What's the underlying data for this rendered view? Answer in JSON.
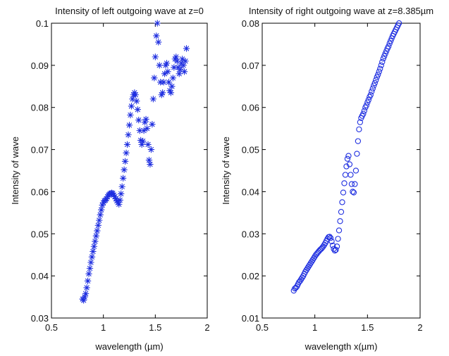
{
  "chart_data": [
    {
      "type": "scatter",
      "title": "Intensity of left outgoing wave at z=0",
      "xlabel": "wavelength (µm)",
      "ylabel": "Intensity of wave",
      "xlim": [
        0.5,
        2
      ],
      "ylim": [
        0.03,
        0.1
      ],
      "xticks": [
        0.5,
        1,
        1.5,
        2
      ],
      "yticks": [
        0.03,
        0.04,
        0.05,
        0.06,
        0.07,
        0.08,
        0.09,
        0.1
      ],
      "xtick_labels": [
        "0.5",
        "1",
        "1.5",
        "2"
      ],
      "ytick_labels": [
        "0.03",
        "0.04",
        "0.05",
        "0.06",
        "0.07",
        "0.08",
        "0.09",
        "0.1"
      ],
      "marker": "star",
      "color": "#1f2fe0",
      "grid": false,
      "series": [
        {
          "x": [
            0.8,
            0.81,
            0.82,
            0.83,
            0.84,
            0.85,
            0.86,
            0.87,
            0.88,
            0.89,
            0.9,
            0.91,
            0.92,
            0.93,
            0.94,
            0.95,
            0.96,
            0.97,
            0.98,
            0.99,
            1.0,
            1.01,
            1.02,
            1.03,
            1.04,
            1.05,
            1.06,
            1.07,
            1.08,
            1.09,
            1.1,
            1.11,
            1.12,
            1.13,
            1.14,
            1.15,
            1.16,
            1.17,
            1.18,
            1.19,
            1.2,
            1.21,
            1.22,
            1.23,
            1.24,
            1.25,
            1.26,
            1.27,
            1.28,
            1.29,
            1.3,
            1.31,
            1.32,
            1.33,
            1.34,
            1.35,
            1.36,
            1.37,
            1.38,
            1.39,
            1.4,
            1.41,
            1.42,
            1.43,
            1.44,
            1.45,
            1.46,
            1.47,
            1.48,
            1.49,
            1.5,
            1.51,
            1.52,
            1.53,
            1.54,
            1.55,
            1.56,
            1.57,
            1.58,
            1.59,
            1.6,
            1.61,
            1.62,
            1.63,
            1.64,
            1.65,
            1.66,
            1.67,
            1.68,
            1.69,
            1.7,
            1.71,
            1.72,
            1.73,
            1.74,
            1.75,
            1.76,
            1.77,
            1.78,
            1.79,
            1.8
          ],
          "y": [
            0.0345,
            0.0342,
            0.035,
            0.0358,
            0.0372,
            0.0388,
            0.0405,
            0.0418,
            0.0432,
            0.0445,
            0.0458,
            0.047,
            0.0482,
            0.0495,
            0.0507,
            0.052,
            0.0532,
            0.0545,
            0.0557,
            0.0568,
            0.0574,
            0.0578,
            0.058,
            0.0583,
            0.0588,
            0.0592,
            0.0594,
            0.0596,
            0.0597,
            0.0596,
            0.0592,
            0.0588,
            0.0583,
            0.0578,
            0.0574,
            0.057,
            0.058,
            0.0595,
            0.0612,
            0.0632,
            0.0652,
            0.0672,
            0.0692,
            0.0712,
            0.0735,
            0.0758,
            0.0782,
            0.0803,
            0.082,
            0.083,
            0.0835,
            0.083,
            0.0815,
            0.0795,
            0.077,
            0.0745,
            0.0722,
            0.0712,
            0.072,
            0.0745,
            0.0765,
            0.0772,
            0.075,
            0.0712,
            0.0675,
            0.0665,
            0.07,
            0.076,
            0.082,
            0.087,
            0.092,
            0.097,
            0.1,
            0.0955,
            0.09,
            0.086,
            0.083,
            0.0835,
            0.086,
            0.088,
            0.09,
            0.0905,
            0.0885,
            0.086,
            0.084,
            0.0835,
            0.085,
            0.087,
            0.0895,
            0.0915,
            0.092,
            0.091,
            0.0895,
            0.088,
            0.089,
            0.0905,
            0.0915,
            0.09,
            0.0885,
            0.091,
            0.094
          ]
        }
      ]
    },
    {
      "type": "scatter",
      "title": "Intensity of right outgoing wave at z=8.385µm",
      "xlabel": "wavelength x(µm)",
      "ylabel": "Intensity of wave",
      "xlim": [
        0.5,
        2
      ],
      "ylim": [
        0.01,
        0.08
      ],
      "xticks": [
        0.5,
        1,
        1.5,
        2
      ],
      "yticks": [
        0.01,
        0.02,
        0.03,
        0.04,
        0.05,
        0.06,
        0.07,
        0.08
      ],
      "xtick_labels": [
        "0.5",
        "1",
        "1.5",
        "2"
      ],
      "ytick_labels": [
        "0.01",
        "0.02",
        "0.03",
        "0.04",
        "0.05",
        "0.06",
        "0.07",
        "0.08"
      ],
      "marker": "circle",
      "color": "#1f2fe0",
      "grid": false,
      "series": [
        {
          "x": [
            0.8,
            0.81,
            0.82,
            0.83,
            0.84,
            0.85,
            0.86,
            0.87,
            0.88,
            0.89,
            0.9,
            0.91,
            0.92,
            0.93,
            0.94,
            0.95,
            0.96,
            0.97,
            0.98,
            0.99,
            1.0,
            1.01,
            1.02,
            1.03,
            1.04,
            1.05,
            1.06,
            1.07,
            1.08,
            1.09,
            1.1,
            1.11,
            1.12,
            1.13,
            1.14,
            1.15,
            1.16,
            1.17,
            1.18,
            1.19,
            1.2,
            1.21,
            1.22,
            1.23,
            1.24,
            1.25,
            1.26,
            1.27,
            1.28,
            1.29,
            1.3,
            1.31,
            1.32,
            1.33,
            1.34,
            1.35,
            1.36,
            1.37,
            1.38,
            1.39,
            1.4,
            1.41,
            1.42,
            1.43,
            1.44,
            1.45,
            1.46,
            1.47,
            1.48,
            1.49,
            1.5,
            1.51,
            1.52,
            1.53,
            1.54,
            1.55,
            1.56,
            1.57,
            1.58,
            1.59,
            1.6,
            1.61,
            1.62,
            1.63,
            1.64,
            1.65,
            1.66,
            1.67,
            1.68,
            1.69,
            1.7,
            1.71,
            1.72,
            1.73,
            1.74,
            1.75,
            1.76,
            1.77,
            1.78,
            1.79,
            1.8
          ],
          "y": [
            0.0165,
            0.017,
            0.0172,
            0.0175,
            0.018,
            0.0185,
            0.0188,
            0.0192,
            0.0196,
            0.02,
            0.0205,
            0.021,
            0.0214,
            0.0218,
            0.0222,
            0.0226,
            0.023,
            0.0234,
            0.0238,
            0.0242,
            0.0246,
            0.025,
            0.0253,
            0.0256,
            0.0259,
            0.0262,
            0.0264,
            0.0267,
            0.027,
            0.0274,
            0.0278,
            0.0283,
            0.0288,
            0.0292,
            0.0293,
            0.029,
            0.0282,
            0.0272,
            0.0264,
            0.026,
            0.0262,
            0.027,
            0.0288,
            0.0308,
            0.033,
            0.0352,
            0.0375,
            0.0398,
            0.042,
            0.044,
            0.046,
            0.0478,
            0.0485,
            0.0465,
            0.044,
            0.0418,
            0.04,
            0.0398,
            0.0418,
            0.045,
            0.049,
            0.052,
            0.0548,
            0.0565,
            0.0575,
            0.058,
            0.0585,
            0.0592,
            0.06,
            0.0605,
            0.0612,
            0.0618,
            0.0625,
            0.063,
            0.0638,
            0.0645,
            0.0652,
            0.0658,
            0.0665,
            0.0672,
            0.0678,
            0.0685,
            0.0692,
            0.07,
            0.0708,
            0.0716,
            0.0722,
            0.0728,
            0.0734,
            0.074,
            0.0745,
            0.0752,
            0.0758,
            0.0764,
            0.077,
            0.0775,
            0.078,
            0.0785,
            0.079,
            0.0795,
            0.08
          ]
        }
      ]
    }
  ]
}
